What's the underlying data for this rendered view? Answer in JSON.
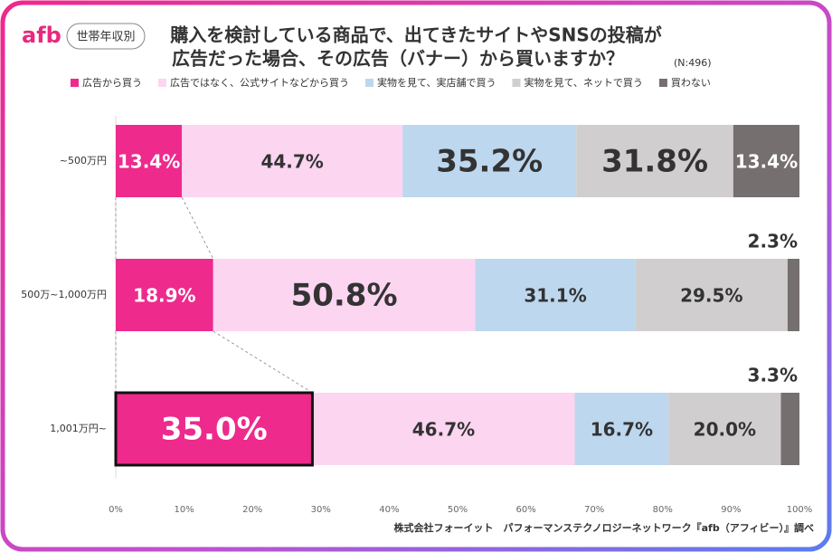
{
  "brand": "afb",
  "badge": "世帯年収別",
  "footer": "株式会社フォーイット　パフォーマンステクノロジーネットワーク『afb（アフィビー）』調べ",
  "chart_data": {
    "type": "bar",
    "orientation": "horizontal",
    "stacking": "percent",
    "title": [
      "購入を検討している商品で、出てきたサイトやSNSの投稿が",
      "広告だった場合、その広告（バナー）から買いますか？"
    ],
    "note": "(N:496)",
    "categories": [
      "~500万円",
      "500万~1,000万円",
      "1,001万円~"
    ],
    "series": [
      {
        "name": "広告から買う",
        "color": "#ee2a8d",
        "values": [
          13.4,
          18.9,
          35.0
        ],
        "value_labels": [
          "13.4%",
          "18.9%",
          "35.0%"
        ]
      },
      {
        "name": "広告ではなく、公式サイトなどから買う",
        "color": "#fcd5f1",
        "values": [
          44.7,
          50.8,
          46.7
        ],
        "value_labels": [
          "44.7%",
          "50.8%",
          "46.7%"
        ]
      },
      {
        "name": "実物を見て、実店舗で買う",
        "color": "#bdd7ee",
        "values": [
          35.2,
          31.1,
          16.7
        ],
        "value_labels": [
          "35.2%",
          "31.1%",
          "16.7%"
        ]
      },
      {
        "name": "実物を見て、ネットで買う",
        "color": "#d0cece",
        "values": [
          31.8,
          29.5,
          20.0
        ],
        "value_labels": [
          "31.8%",
          "29.5%",
          "20.0%"
        ]
      },
      {
        "name": "買わない",
        "color": "#766f6f",
        "values": [
          13.4,
          2.3,
          3.3
        ],
        "value_labels": [
          "13.4%",
          "2.3%",
          "3.3%"
        ]
      }
    ],
    "xlim": [
      0,
      100
    ],
    "xticks": [
      {
        "value": 0,
        "label": "0%"
      },
      {
        "value": 10,
        "label": "10%"
      },
      {
        "value": 20,
        "label": "20%"
      },
      {
        "value": 30,
        "label": "30%"
      },
      {
        "value": 40,
        "label": "40%"
      },
      {
        "value": 50,
        "label": "50%"
      },
      {
        "value": 60,
        "label": "60%"
      },
      {
        "value": 70,
        "label": "70%"
      },
      {
        "value": 80,
        "label": "80%"
      },
      {
        "value": 90,
        "label": "90%"
      },
      {
        "value": 100,
        "label": "100%"
      }
    ],
    "legend": "top",
    "grid": false
  }
}
